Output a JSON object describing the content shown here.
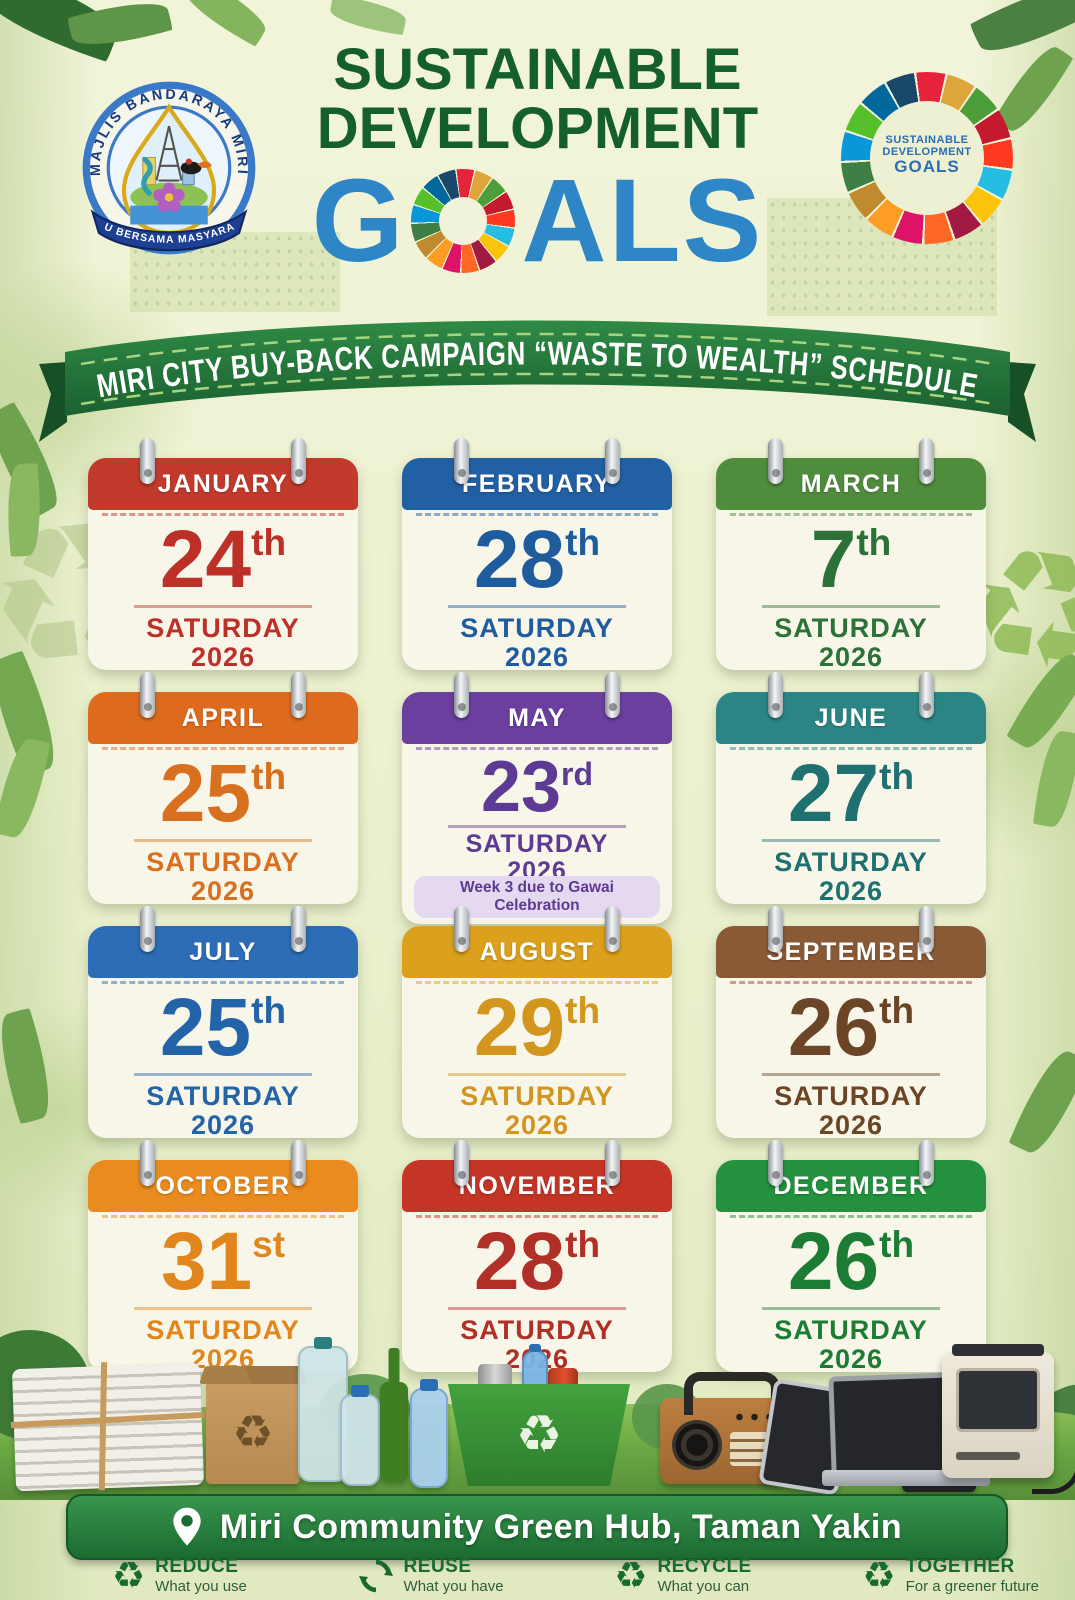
{
  "theme": {
    "title_green": "#155f2b",
    "title_blue": "#2e86c6",
    "banner_green": "#237739",
    "banner_green_dark": "#174f27",
    "card_bg": "#f8f5e9",
    "footer_green": "#186b2f"
  },
  "sdg_colors": [
    "#e5243b",
    "#dda63a",
    "#4c9f38",
    "#c5192d",
    "#ff3a21",
    "#26bde2",
    "#fcc30b",
    "#a21942",
    "#fd6925",
    "#dd1367",
    "#fd9d24",
    "#bf8b2e",
    "#3f7e44",
    "#0a97d9",
    "#56c02b",
    "#00689d",
    "#19486a"
  ],
  "header": {
    "crest": {
      "ring_text": "MAJLIS BANDARAYA MIRI",
      "ribbon_text": "MAJU BERSAMA MASYARAKAT"
    },
    "title": {
      "line1": "SUSTAINABLE",
      "line2": "DEVELOPMENT",
      "goals_g": "G",
      "goals_rest": "ALS"
    },
    "sdg_logo": {
      "line1": "SUSTAINABLE",
      "line2": "DEVELOPMENT",
      "line3": "GOALS"
    }
  },
  "banner": {
    "text": "MIRI CITY BUY-BACK CAMPAIGN “WASTE TO WEALTH” SCHEDULE"
  },
  "months": [
    {
      "name": "JANUARY",
      "day": "24",
      "ordinal": "th",
      "weekday": "SATURDAY",
      "year": "2026",
      "header_color": "#c23a2c",
      "text_color": "#bc3028",
      "note": ""
    },
    {
      "name": "FEBRUARY",
      "day": "28",
      "ordinal": "th",
      "weekday": "SATURDAY",
      "year": "2026",
      "header_color": "#2260a4",
      "text_color": "#1f5c9e",
      "note": ""
    },
    {
      "name": "MARCH",
      "day": "7",
      "ordinal": "th",
      "weekday": "SATURDAY",
      "year": "2026",
      "header_color": "#4f8d3d",
      "text_color": "#2c7137",
      "note": ""
    },
    {
      "name": "APRIL",
      "day": "25",
      "ordinal": "th",
      "weekday": "SATURDAY",
      "year": "2026",
      "header_color": "#dd6a1d",
      "text_color": "#d8701f",
      "note": ""
    },
    {
      "name": "MAY",
      "day": "23",
      "ordinal": "rd",
      "weekday": "SATURDAY",
      "year": "2026",
      "header_color": "#6a3f9d",
      "text_color": "#5d3a94",
      "note": "Week 3 due to Gawai Celebration"
    },
    {
      "name": "JUNE",
      "day": "27",
      "ordinal": "th",
      "weekday": "SATURDAY",
      "year": "2026",
      "header_color": "#2b8584",
      "text_color": "#1e7170",
      "note": ""
    },
    {
      "name": "JULY",
      "day": "25",
      "ordinal": "th",
      "weekday": "SATURDAY",
      "year": "2026",
      "header_color": "#2d6db7",
      "text_color": "#2263aa",
      "note": ""
    },
    {
      "name": "AUGUST",
      "day": "29",
      "ordinal": "th",
      "weekday": "SATURDAY",
      "year": "2026",
      "header_color": "#dba11c",
      "text_color": "#d2961e",
      "note": ""
    },
    {
      "name": "SEPTEMBER",
      "day": "26",
      "ordinal": "th",
      "weekday": "SATURDAY",
      "year": "2026",
      "header_color": "#8a5a36",
      "text_color": "#6b4526",
      "note": ""
    },
    {
      "name": "OCTOBER",
      "day": "31",
      "ordinal": "st",
      "weekday": "SATURDAY",
      "year": "2026",
      "header_color": "#e98b1e",
      "text_color": "#e0861c",
      "note": ""
    },
    {
      "name": "NOVEMBER",
      "day": "28",
      "ordinal": "th",
      "weekday": "SATURDAY",
      "year": "2026",
      "header_color": "#c43526",
      "text_color": "#b02f27",
      "note": ""
    },
    {
      "name": "DECEMBER",
      "day": "26",
      "ordinal": "th",
      "weekday": "SATURDAY",
      "year": "2026",
      "header_color": "#23913e",
      "text_color": "#1c7c34",
      "note": ""
    }
  ],
  "location": {
    "text": "Miri Community Green Hub, Taman Yakin"
  },
  "footer": {
    "items": [
      {
        "title": "REDUCE",
        "subtitle": "What you use"
      },
      {
        "title": "REUSE",
        "subtitle": "What you have"
      },
      {
        "title": "RECYCLE",
        "subtitle": "What you can"
      },
      {
        "title": "TOGETHER",
        "subtitle": "For a greener future"
      }
    ]
  }
}
